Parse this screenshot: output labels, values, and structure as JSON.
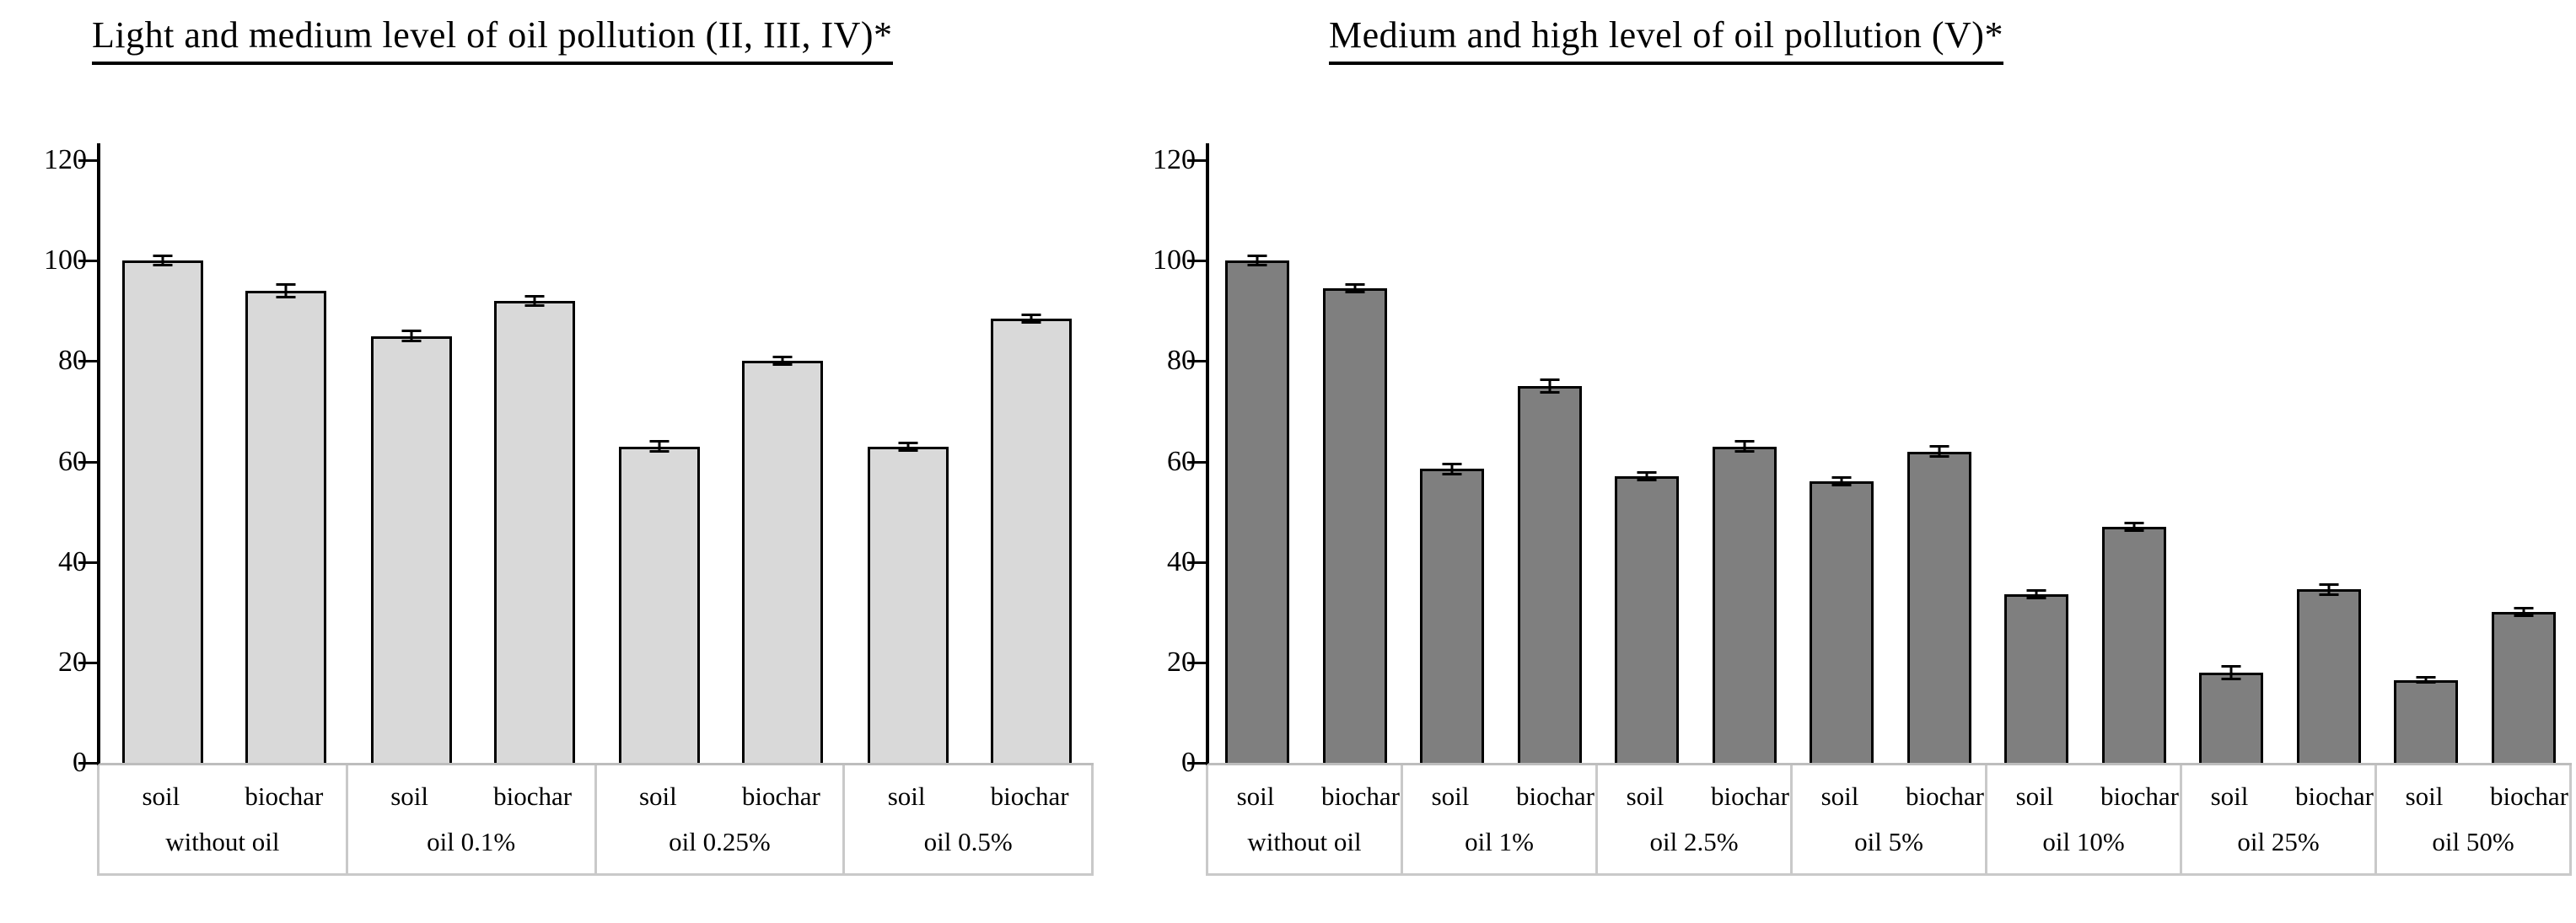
{
  "page": {
    "background": "#ffffff"
  },
  "chart_data": [
    {
      "type": "bar",
      "title": "Light and medium level of oil pollution (II, III, IV)*",
      "ylim": [
        0,
        120
      ],
      "y_ticks": [
        0,
        20,
        40,
        60,
        80,
        100,
        120
      ],
      "grid": "off",
      "legend": "none",
      "bar_color": "#d9d9d9",
      "bar_edge_color": "#000000",
      "sub_categories": [
        "soil",
        "biochar"
      ],
      "groups": [
        "without oil",
        "oil  0.1%",
        "oil 0.25%",
        "oil  0.5%"
      ],
      "values": [
        [
          100,
          94
        ],
        [
          85,
          92
        ],
        [
          63,
          80
        ],
        [
          63,
          88.5
        ]
      ],
      "errors": [
        [
          1.2,
          1.5
        ],
        [
          1.2,
          1.2
        ],
        [
          1.2,
          1.0
        ],
        [
          1.0,
          1.0
        ]
      ]
    },
    {
      "type": "bar",
      "title": "Medium and high level of oil pollution (V)*",
      "ylim": [
        0,
        120
      ],
      "y_ticks": [
        0,
        20,
        40,
        60,
        80,
        100,
        120
      ],
      "grid": "off",
      "legend": "none",
      "bar_color": "#7f7f7f",
      "bar_edge_color": "#000000",
      "sub_categories": [
        "soil",
        "biochar"
      ],
      "groups": [
        "without oil",
        "oil 1%",
        "oil 2.5%",
        "oil 5%",
        "oil 10%",
        "oil 25%",
        "oil 50%"
      ],
      "values": [
        [
          100,
          94.5
        ],
        [
          58.5,
          75
        ],
        [
          57,
          63
        ],
        [
          56,
          62
        ],
        [
          33.5,
          47
        ],
        [
          18,
          34.5
        ],
        [
          16.5,
          30
        ]
      ],
      "errors": [
        [
          1.2,
          1.0
        ],
        [
          1.2,
          1.5
        ],
        [
          1.0,
          1.2
        ],
        [
          1.0,
          1.2
        ],
        [
          1.0,
          1.0
        ],
        [
          1.5,
          1.2
        ],
        [
          0.8,
          1.0
        ]
      ]
    }
  ]
}
